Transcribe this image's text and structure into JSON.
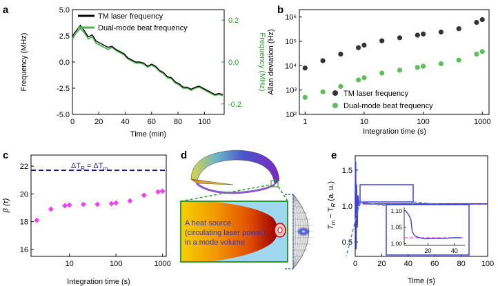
{
  "panels": {
    "a": {
      "letter": "a",
      "chart_data": {
        "type": "line",
        "xlabel": "Time (min)",
        "ylabel": "Frequency (MHz)",
        "y2label": "Frequency (MHz)",
        "xlim": [
          0,
          115
        ],
        "ylim": [
          -5.0,
          5.0
        ],
        "y2lim": [
          -0.25,
          0.25
        ],
        "xticks": [
          "0",
          "20",
          "40",
          "60",
          "80",
          "100"
        ],
        "xtick_values": [
          0,
          20,
          40,
          60,
          80,
          100
        ],
        "yticks": [
          "-5.0",
          "-2.5",
          "0.0",
          "2.5",
          "5.0"
        ],
        "ytick_values": [
          -5.0,
          -2.5,
          0.0,
          2.5,
          5.0
        ],
        "y2ticks": [
          "-0.2",
          "0.0",
          "0.2"
        ],
        "y2tick_values": [
          -0.2,
          0.0,
          0.2
        ],
        "legend_position": "top",
        "series": [
          {
            "name": "TM laser frequency",
            "color": "#000000",
            "x": [
              0,
              3,
              6,
              9,
              12,
              15,
              18,
              21,
              24,
              27,
              30,
              33,
              36,
              39,
              42,
              45,
              48,
              51,
              54,
              57,
              60,
              63,
              66,
              69,
              72,
              75,
              78,
              81,
              84,
              87,
              90,
              93,
              96,
              99,
              102,
              105,
              108,
              111,
              114
            ],
            "y": [
              2.5,
              3.0,
              3.5,
              3.0,
              2.4,
              2.6,
              2.0,
              1.8,
              1.6,
              1.4,
              1.5,
              1.2,
              1.0,
              0.8,
              0.4,
              0.2,
              0.0,
              0.0,
              -0.1,
              -0.4,
              -0.2,
              -0.4,
              -0.8,
              -1.0,
              -1.4,
              -1.5,
              -1.9,
              -2.1,
              -2.4,
              -2.4,
              -2.6,
              -2.4,
              -2.3,
              -2.5,
              -2.7,
              -2.9,
              -3.1,
              -3.0,
              -3.1
            ]
          },
          {
            "name": "Dual-mode beat frequency",
            "color": "#4caf50",
            "x": [
              0,
              3,
              6,
              9,
              12,
              15,
              18,
              21,
              24,
              27,
              30,
              33,
              36,
              39,
              42,
              45,
              48,
              51,
              54,
              57,
              60,
              63,
              66,
              69,
              72,
              75,
              78,
              81,
              84,
              87,
              90,
              93,
              96,
              99,
              102,
              105,
              108,
              111,
              114
            ],
            "y": [
              0.11,
              0.14,
              0.16,
              0.14,
              0.11,
              0.12,
              0.09,
              0.08,
              0.07,
              0.06,
              0.07,
              0.055,
              0.045,
              0.035,
              0.015,
              0.005,
              -0.005,
              -0.005,
              -0.01,
              -0.025,
              -0.015,
              -0.025,
              -0.045,
              -0.055,
              -0.075,
              -0.08,
              -0.1,
              -0.11,
              -0.125,
              -0.125,
              -0.135,
              -0.125,
              -0.12,
              -0.13,
              -0.14,
              -0.15,
              -0.16,
              -0.155,
              -0.16
            ]
          }
        ]
      }
    },
    "b": {
      "letter": "b",
      "chart_data": {
        "type": "scatter",
        "xlabel": "Integration time (s)",
        "ylabel": "Allan deviation (Hz)",
        "xscale": "log",
        "yscale": "log",
        "xlim": [
          0.8,
          1300
        ],
        "ylim": [
          100,
          2000000
        ],
        "xticks": [
          "1",
          "10",
          "100",
          "1000"
        ],
        "xtick_values": [
          1,
          10,
          100,
          1000
        ],
        "yticks": [
          "10²",
          "10³",
          "10⁴",
          "10⁵",
          "10⁶"
        ],
        "ytick_values": [
          100,
          1000,
          10000,
          100000,
          1000000
        ],
        "legend_position": "bottom-right",
        "series": [
          {
            "name": "TM laser frequency",
            "color": "#333333",
            "x": [
              1,
              2,
              4,
              8,
              10,
              20,
              40,
              80,
              100,
              200,
              400,
              800,
              1000
            ],
            "y": [
              8000,
              16000,
              30000,
              55000,
              70000,
              105000,
              140000,
              180000,
              200000,
              240000,
              330000,
              600000,
              780000
            ]
          },
          {
            "name": "Dual-mode beat frequency",
            "color": "#5cbf5c",
            "x": [
              1,
              2,
              4,
              8,
              10,
              20,
              40,
              80,
              100,
              200,
              400,
              800,
              1000
            ],
            "y": [
              500,
              850,
              1400,
              2600,
              3200,
              5000,
              6500,
              8500,
              9500,
              12000,
              17000,
              30000,
              38000
            ]
          }
        ]
      }
    },
    "c": {
      "letter": "c",
      "chart_data": {
        "type": "scatter",
        "xlabel": "Integration time (s)",
        "ylabel": "β (τ)",
        "xscale": "log",
        "xlim": [
          1.5,
          1200
        ],
        "ylim": [
          15.5,
          22.8
        ],
        "xticks": [
          "10",
          "100",
          "1000"
        ],
        "xtick_values": [
          10,
          100,
          1000
        ],
        "yticks": [
          "16",
          "18",
          "20",
          "22"
        ],
        "ytick_values": [
          16,
          18,
          20,
          22
        ],
        "reference_line": {
          "label_main": "ΔT",
          "label_sub1": "R",
          "label_eq": " = ΔT",
          "label_sub2": "m",
          "y": 21.7,
          "color": "#1a1a8c"
        },
        "series": [
          {
            "name": "",
            "color": "#ee44ee",
            "x": [
              2,
              4,
              8,
              10,
              20,
              40,
              80,
              100,
              200,
              400,
              800,
              1000
            ],
            "y": [
              18.1,
              18.9,
              19.15,
              19.2,
              19.25,
              19.25,
              19.3,
              19.35,
              19.5,
              19.9,
              20.15,
              20.2
            ]
          }
        ]
      }
    },
    "d": {
      "letter": "d",
      "inset_text": [
        "A heat source",
        "(circulating laser power)",
        "in a mode volume"
      ]
    },
    "e": {
      "letter": "e",
      "chart_data": {
        "type": "line",
        "xlabel": "Time (s)",
        "ylabel_main": "T",
        "ylabel_sub1": "m",
        "ylabel_mid": " − T",
        "ylabel_sub2": "R",
        "ylabel_unit": " (a. u.)",
        "xlim": [
          0,
          100
        ],
        "ylim": [
          0.3,
          1.7
        ],
        "xticks": [
          "0",
          "20",
          "40",
          "60",
          "80",
          "100"
        ],
        "xtick_values": [
          0,
          20,
          40,
          60,
          80,
          100
        ],
        "yticks": [
          "0.5",
          "1.0",
          "1.5"
        ],
        "ytick_values": [
          0.5,
          1.0,
          1.5
        ],
        "reference_y": 1.03,
        "series": [
          {
            "name": "",
            "color": "#4040d8",
            "x": [
              0,
              0.3,
              0.6,
              1.0,
              1.5,
              2,
              3,
              4,
              6,
              10,
              20,
              40,
              60,
              80,
              100
            ],
            "y": [
              1.03,
              1.62,
              0.4,
              1.3,
              0.7,
              1.15,
              1.0,
              1.06,
              1.04,
              1.03,
              1.03,
              1.03,
              1.03,
              1.03,
              1.03
            ]
          }
        ],
        "inset": {
          "xlim": [
            2,
            48
          ],
          "ylim": [
            0.995,
            1.11
          ],
          "xticks": [
            "20",
            "40"
          ],
          "xtick_values": [
            20,
            40
          ],
          "yticks": [
            "1.00",
            "1.05",
            "1.10"
          ],
          "ytick_values": [
            1.0,
            1.05,
            1.1
          ],
          "x": [
            3,
            5,
            7,
            8,
            9,
            10,
            12,
            14,
            16,
            18,
            20,
            25,
            30,
            35,
            40,
            45
          ],
          "y": [
            1.1,
            1.09,
            1.075,
            1.04,
            1.03,
            1.025,
            1.02,
            1.018,
            1.016,
            1.015,
            1.015,
            1.016,
            1.016,
            1.017,
            1.018,
            1.018
          ]
        }
      }
    }
  }
}
